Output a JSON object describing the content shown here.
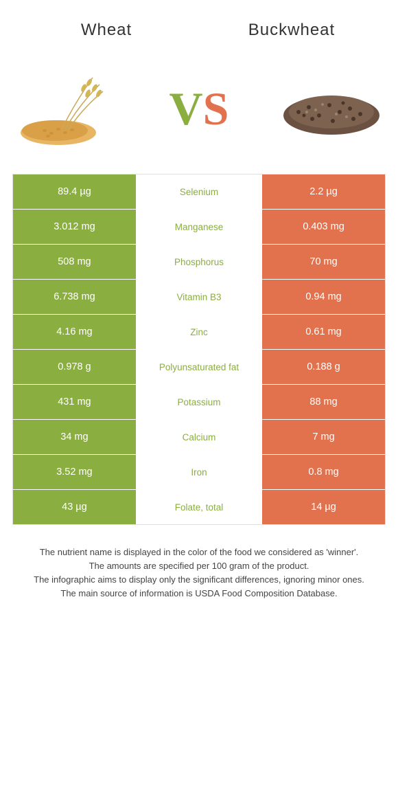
{
  "titles": {
    "left": "Wheat",
    "right": "Buckwheat"
  },
  "vs": {
    "v": "V",
    "s": "S"
  },
  "colors": {
    "green": "#8aae3f",
    "orange": "#e2724e",
    "text": "#333333",
    "footer": "#444444",
    "background": "#ffffff"
  },
  "typography": {
    "title_fontsize": 24,
    "vs_fontsize": 68,
    "cell_fontsize": 14.5,
    "mid_fontsize": 13.5,
    "footer_fontsize": 13
  },
  "rows": [
    {
      "left": "89.4 µg",
      "mid": "Selenium",
      "right": "2.2 µg",
      "winner": "green"
    },
    {
      "left": "3.012 mg",
      "mid": "Manganese",
      "right": "0.403 mg",
      "winner": "green"
    },
    {
      "left": "508 mg",
      "mid": "Phosphorus",
      "right": "70 mg",
      "winner": "green"
    },
    {
      "left": "6.738 mg",
      "mid": "Vitamin B3",
      "right": "0.94 mg",
      "winner": "green"
    },
    {
      "left": "4.16 mg",
      "mid": "Zinc",
      "right": "0.61 mg",
      "winner": "green"
    },
    {
      "left": "0.978 g",
      "mid": "Polyunsaturated fat",
      "right": "0.188 g",
      "winner": "green"
    },
    {
      "left": "431 mg",
      "mid": "Potassium",
      "right": "88 mg",
      "winner": "green"
    },
    {
      "left": "34 mg",
      "mid": "Calcium",
      "right": "7 mg",
      "winner": "green"
    },
    {
      "left": "3.52 mg",
      "mid": "Iron",
      "right": "0.8 mg",
      "winner": "green"
    },
    {
      "left": "43 µg",
      "mid": "Folate, total",
      "right": "14 µg",
      "winner": "green"
    }
  ],
  "footer": {
    "l1": "The nutrient name is displayed in the color of the food we considered as 'winner'.",
    "l2": "The amounts are specified per 100 gram of the product.",
    "l3": "The infographic aims to display only the significant differences, ignoring minor ones.",
    "l4": "The main source of information is USDA Food Composition Database."
  }
}
